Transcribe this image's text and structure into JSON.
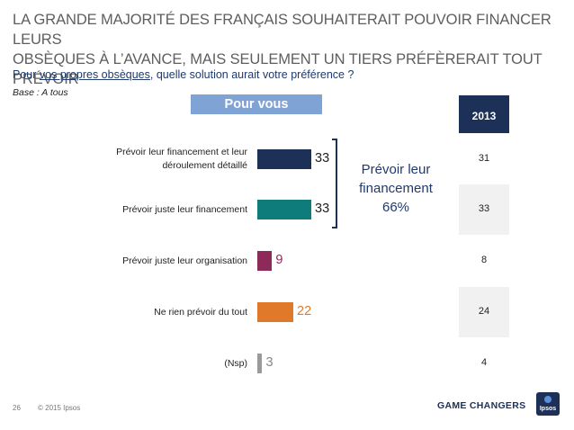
{
  "header": {
    "title_line1": "LA GRANDE MAJORITÉ DES FRANÇAIS SOUHAITERAIT POUVOIR FINANCER LEURS",
    "title_line2": "OBSÈQUES À L’AVANCE, MAIS SEULEMENT UN TIERS PRÉFÈRERAIT TOUT PRÉVOIR",
    "question_pre": "Pour ",
    "question_underlined": "vos propres obsèques",
    "question_post": ", quelle solution aurait votre préférence ?",
    "base": "Base : A tous"
  },
  "chart_data": {
    "type": "bar",
    "orientation": "horizontal",
    "title": "Pour vous",
    "categories": [
      "Prévoir leur financement et leur déroulement détaillé",
      "Prévoir juste leur financement",
      "Prévoir juste leur organisation",
      "Ne rien prévoir du tout",
      "(Nsp)"
    ],
    "category_lines": [
      [
        "Prévoir leur financement et leur",
        "déroulement détaillé"
      ],
      [
        "Prévoir juste leur financement"
      ],
      [
        "Prévoir juste leur organisation"
      ],
      [
        "Ne rien prévoir du tout"
      ],
      [
        "(Nsp)"
      ]
    ],
    "series": [
      {
        "values": [
          33,
          33,
          9,
          22,
          3
        ]
      }
    ],
    "value_labels": [
      "33",
      "33",
      "9",
      "22",
      "3"
    ],
    "bar_colors": [
      "#1d3158",
      "#0e7c7b",
      "#8e2a5a",
      "#e07a2a",
      "#9a9a9a"
    ],
    "label_colors": [
      "#222222",
      "#222222",
      "#8e2a5a",
      "#e07a2a",
      "#888888"
    ],
    "comparison": {
      "label": "2013",
      "values": [
        "31",
        "33",
        "8",
        "24",
        "4"
      ]
    },
    "summary": {
      "line1": "Prévoir leur",
      "line2": "financement",
      "line3": "66%"
    },
    "xlim": [
      0,
      33
    ],
    "grid": false,
    "legend": "none"
  },
  "footer": {
    "page_number": "26",
    "copyright": "© 2015 Ipsos",
    "tagline": "GAME CHANGERS",
    "logo_text": "Ipsos"
  }
}
